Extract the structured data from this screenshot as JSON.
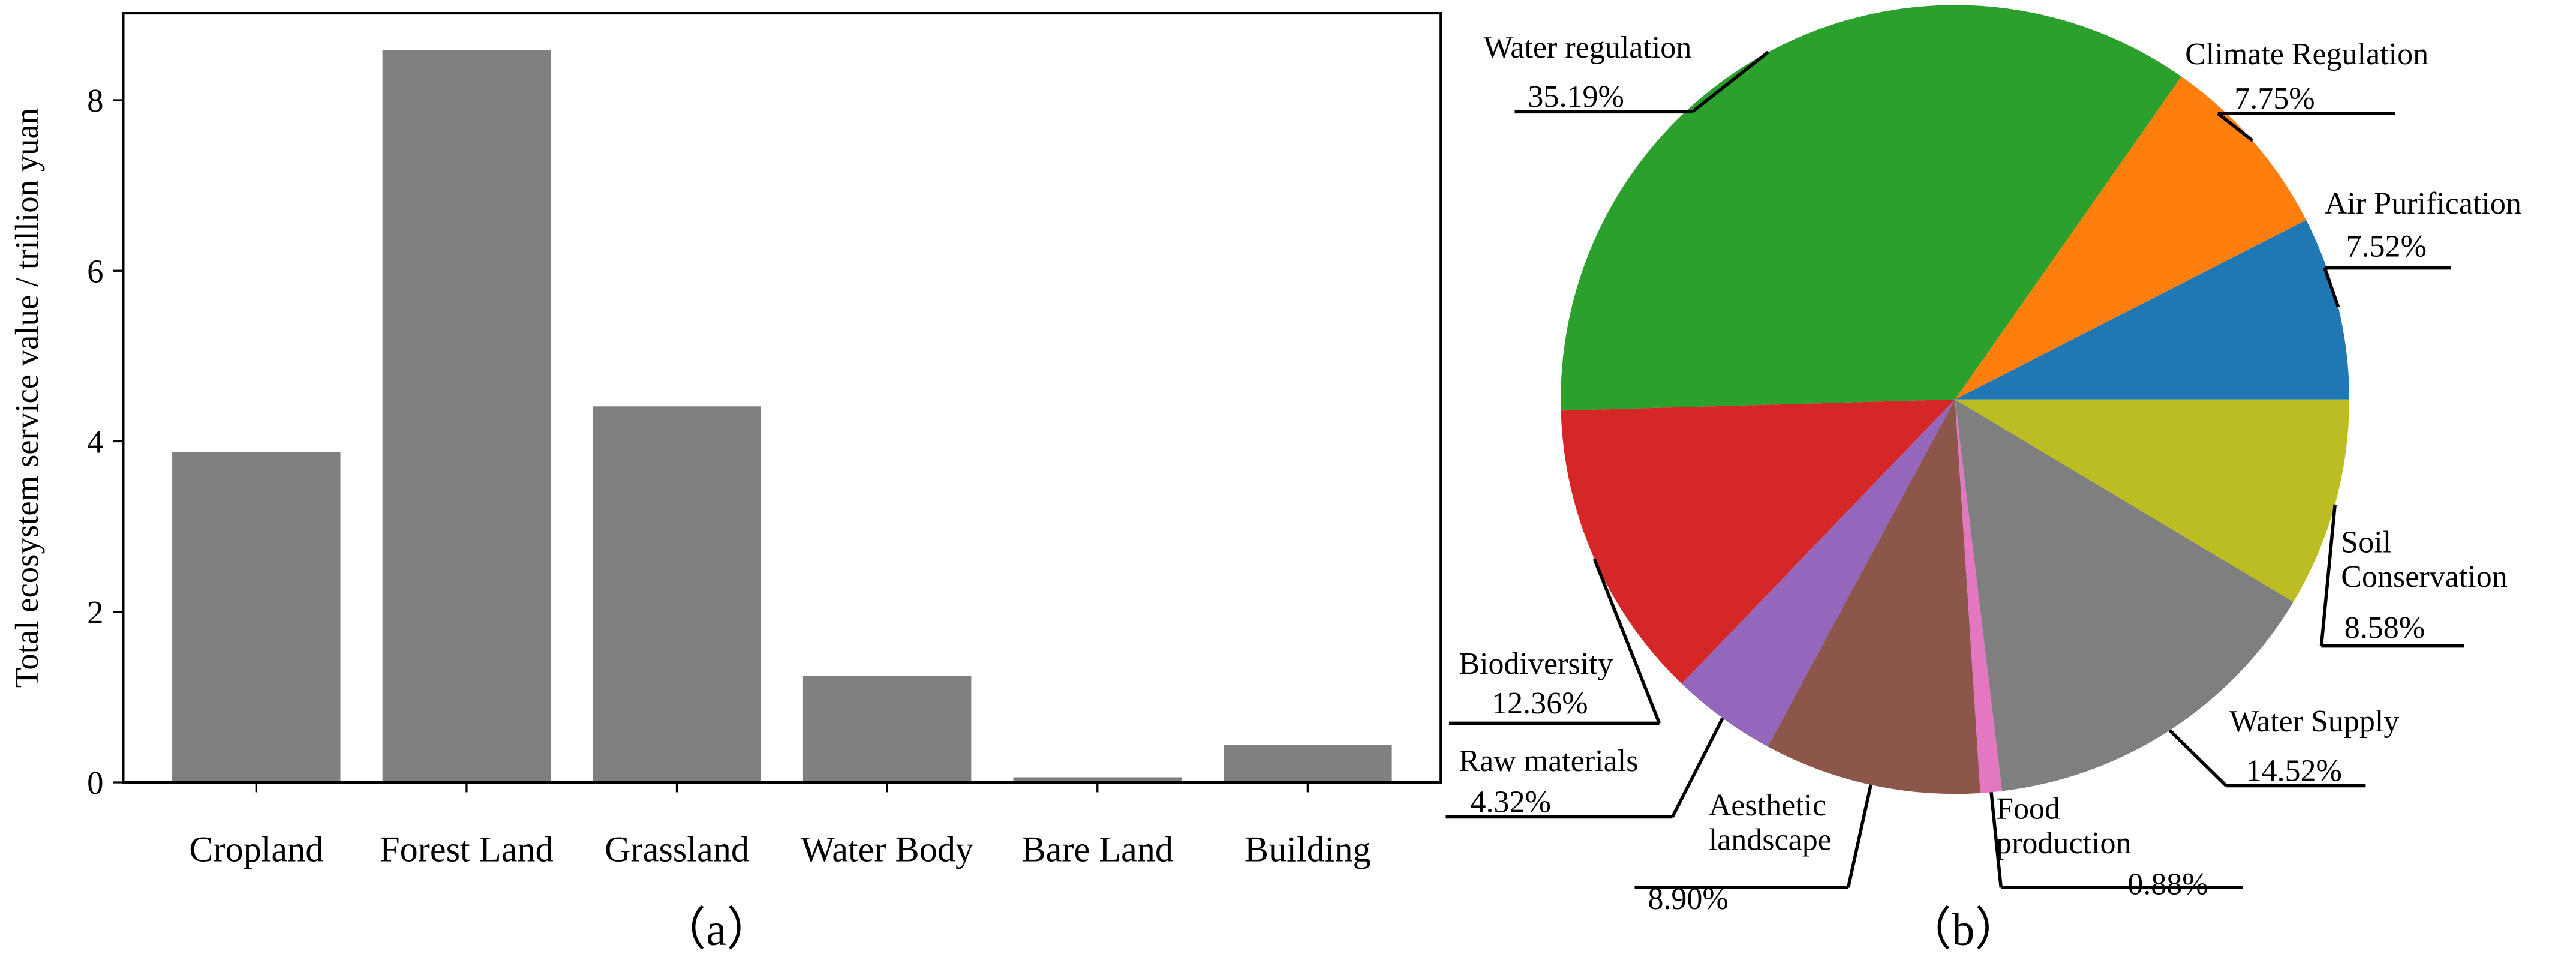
{
  "chart_data": [
    {
      "type": "bar",
      "categories": [
        "Cropland",
        "Forest Land",
        "Grassland",
        "Water Body",
        "Bare Land",
        "Building"
      ],
      "values": [
        3.87,
        8.59,
        4.41,
        1.25,
        0.06,
        0.44
      ],
      "color": "#808080",
      "ylabel": "Total ecosystem service value / trillion yuan",
      "ylim": [
        0,
        9.02
      ],
      "yticks": [
        0,
        2,
        4,
        6,
        8
      ],
      "caption": "（a）"
    },
    {
      "type": "pie",
      "categories": [
        "Air Purification",
        "Climate Regulation",
        "Water regulation",
        "Biodiversity",
        "Raw materials",
        "Aesthetic landscape",
        "Food production",
        "Water Supply",
        "Soil Conservation"
      ],
      "values": [
        7.52,
        7.75,
        35.19,
        12.36,
        4.32,
        8.9,
        0.88,
        14.52,
        8.58
      ],
      "value_labels": [
        "7.52%",
        "7.75%",
        "35.19%",
        "12.36%",
        "4.32%",
        "8.90%",
        "0.88%",
        "14.52%",
        "8.58%"
      ],
      "colors": [
        "#1f77b4",
        "#ff7f0e",
        "#2ca02c",
        "#d62728",
        "#9467bd",
        "#8c564b",
        "#e377c2",
        "#7f7f7f",
        "#bcbd22"
      ],
      "caption": "（b）"
    }
  ]
}
